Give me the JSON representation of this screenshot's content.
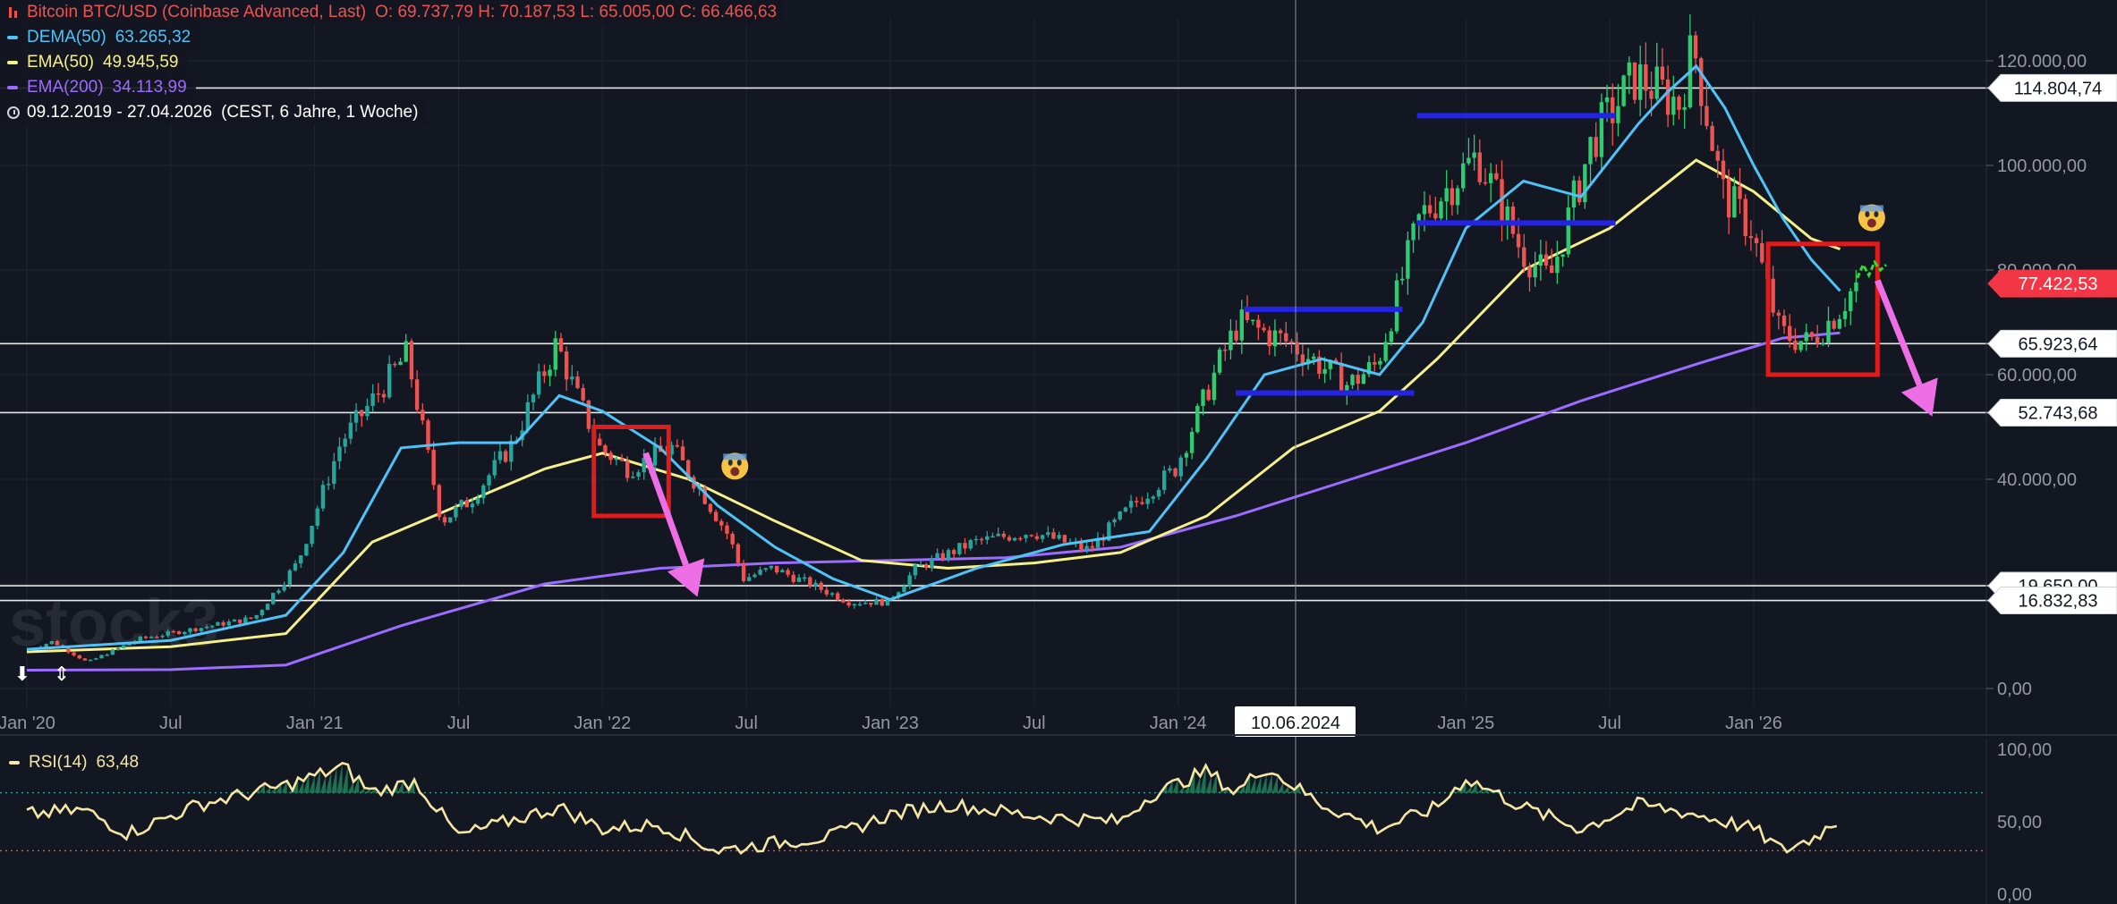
{
  "legend": {
    "title": "Bitcoin BTC/USD (Coinbase Advanced, Last)",
    "ohlc": "O: 69.737,79  H: 70.187,53  L: 65.005,00  C: 66.466,63",
    "indicators": [
      {
        "label": "DEMA(50)",
        "value": "63.265,32",
        "color": "#4fc3f7"
      },
      {
        "label": "EMA(50)",
        "value": "49.945,59",
        "color": "#f5f08a"
      },
      {
        "label": "EMA(200)",
        "value": "34.113,99",
        "color": "#9c6bff"
      }
    ],
    "range": "09.12.2019 - 27.04.2026",
    "range_detail": "(CEST, 6 Jahre, 1 Woche)"
  },
  "rsi": {
    "label": "RSI(14)",
    "value": "63,48",
    "color": "#f5e6a3",
    "axis": [
      "100,00",
      "50,00",
      "0,00"
    ]
  },
  "watermark": "stock3",
  "crosshair_date": "10.06.2024",
  "colors": {
    "up": "#26a69a",
    "up_bright": "#2ecc71",
    "down": "#ef5350",
    "bg": "#131722",
    "dema": "#4fc3f7",
    "ema50": "#f5f08a",
    "ema200": "#9c6bff",
    "box": "#e01b1b",
    "level": "#2323e6",
    "arrow": "#ee6ee6",
    "forecast": "#33dd33"
  },
  "chart_data": {
    "type": "line",
    "title": "Bitcoin BTC/USD (Coinbase Advanced, Last)",
    "xlabel": "",
    "ylabel": "",
    "ylim": [
      -5000,
      132000
    ],
    "y_ticks": [
      0,
      20000,
      40000,
      60000,
      80000,
      100000,
      120000
    ],
    "y_tick_labels": [
      "0,00",
      "",
      "40.000,00",
      "60.000,00",
      "80.000,00",
      "100.000,00",
      "120.000,00"
    ],
    "x_tick_labels": [
      "Jan '20",
      "Jul",
      "Jan '21",
      "Jul",
      "Jan '22",
      "Jul",
      "Jan '23",
      "Jul",
      "Jan '24",
      "Jan '25",
      "Jul",
      "Jan '26"
    ],
    "x_tick_times": [
      2020.0,
      2020.5,
      2021.0,
      2021.5,
      2022.0,
      2022.5,
      2023.0,
      2023.5,
      2024.0,
      2025.0,
      2025.5,
      2026.0
    ],
    "x_range": [
      2020.0,
      2026.9
    ],
    "price_path": [
      [
        2020.0,
        7200
      ],
      [
        2020.1,
        9000
      ],
      [
        2020.22,
        5000
      ],
      [
        2020.4,
        9500
      ],
      [
        2020.6,
        11500
      ],
      [
        2020.8,
        13500
      ],
      [
        2020.95,
        24000
      ],
      [
        2021.1,
        47000
      ],
      [
        2021.25,
        58000
      ],
      [
        2021.33,
        64000
      ],
      [
        2021.45,
        32000
      ],
      [
        2021.55,
        36000
      ],
      [
        2021.7,
        47000
      ],
      [
        2021.85,
        66000
      ],
      [
        2021.92,
        56000
      ],
      [
        2022.0,
        46000
      ],
      [
        2022.1,
        42000
      ],
      [
        2022.25,
        46000
      ],
      [
        2022.35,
        38000
      ],
      [
        2022.45,
        29000
      ],
      [
        2022.5,
        21000
      ],
      [
        2022.6,
        23000
      ],
      [
        2022.75,
        19500
      ],
      [
        2022.87,
        16500
      ],
      [
        2023.0,
        16600
      ],
      [
        2023.1,
        23000
      ],
      [
        2023.3,
        28000
      ],
      [
        2023.5,
        30000
      ],
      [
        2023.7,
        26500
      ],
      [
        2023.85,
        35000
      ],
      [
        2024.0,
        42000
      ],
      [
        2024.15,
        62000
      ],
      [
        2024.22,
        70000
      ],
      [
        2024.4,
        66000
      ],
      [
        2024.6,
        58000
      ],
      [
        2024.7,
        62000
      ],
      [
        2024.85,
        90000
      ],
      [
        2024.95,
        96000
      ],
      [
        2025.05,
        102000
      ],
      [
        2025.2,
        84000
      ],
      [
        2025.3,
        78000
      ],
      [
        2025.45,
        105000
      ],
      [
        2025.6,
        117000
      ],
      [
        2025.75,
        112000
      ],
      [
        2025.8,
        123000
      ],
      [
        2025.9,
        95000
      ],
      [
        2026.0,
        88000
      ],
      [
        2026.1,
        68000
      ],
      [
        2026.2,
        66000
      ],
      [
        2026.3,
        72000
      ],
      [
        2026.36,
        77000
      ]
    ],
    "series": [
      {
        "name": "DEMA(50)",
        "last": 63265.32,
        "x": [
          2020.0,
          2020.5,
          2020.9,
          2021.1,
          2021.3,
          2021.5,
          2021.7,
          2021.85,
          2022.0,
          2022.2,
          2022.4,
          2022.6,
          2022.8,
          2023.0,
          2023.3,
          2023.6,
          2023.9,
          2024.1,
          2024.3,
          2024.5,
          2024.7,
          2024.85,
          2025.0,
          2025.2,
          2025.4,
          2025.6,
          2025.7,
          2025.8,
          2025.9,
          2026.0,
          2026.1,
          2026.2,
          2026.3
        ],
        "y": [
          7500,
          9200,
          14000,
          26000,
          46000,
          47000,
          47000,
          56000,
          53000,
          46000,
          35000,
          27000,
          21000,
          17000,
          23000,
          27500,
          30000,
          44000,
          60000,
          63000,
          60000,
          70000,
          88000,
          97000,
          94000,
          108000,
          114000,
          119000,
          111000,
          100000,
          90000,
          82000,
          76000
        ]
      },
      {
        "name": "EMA(50)",
        "last": 49945.59,
        "x": [
          2020.0,
          2020.5,
          2020.9,
          2021.2,
          2021.5,
          2021.8,
          2022.0,
          2022.3,
          2022.6,
          2022.9,
          2023.2,
          2023.5,
          2023.8,
          2024.1,
          2024.4,
          2024.7,
          2024.9,
          2025.2,
          2025.5,
          2025.8,
          2026.0,
          2026.2,
          2026.3
        ],
        "y": [
          7000,
          8000,
          10500,
          28000,
          35000,
          42000,
          45000,
          40000,
          32000,
          24500,
          23000,
          24000,
          26000,
          33000,
          46000,
          53000,
          63000,
          80000,
          88000,
          101000,
          95000,
          86000,
          84000
        ]
      },
      {
        "name": "EMA(200)",
        "last": 34113.99,
        "x": [
          2020.0,
          2020.5,
          2020.9,
          2021.3,
          2021.8,
          2022.2,
          2022.6,
          2023.0,
          2023.4,
          2023.8,
          2024.2,
          2024.6,
          2025.0,
          2025.4,
          2025.8,
          2026.1,
          2026.3
        ],
        "y": [
          3500,
          3600,
          4500,
          12000,
          20000,
          23000,
          24000,
          24500,
          25000,
          27000,
          33000,
          40000,
          47000,
          55000,
          62000,
          67000,
          68000
        ]
      },
      {
        "name": "RSI(14)",
        "last": 63.48,
        "x": [
          2020.0,
          2020.2,
          2020.35,
          2020.6,
          2020.9,
          2021.1,
          2021.2,
          2021.35,
          2021.5,
          2021.7,
          2021.85,
          2022.0,
          2022.2,
          2022.4,
          2022.55,
          2022.8,
          2023.0,
          2023.2,
          2023.5,
          2023.8,
          2023.9,
          2024.1,
          2024.2,
          2024.3,
          2024.5,
          2024.7,
          2024.9,
          2025.0,
          2025.2,
          2025.4,
          2025.6,
          2025.8,
          2026.0,
          2026.1,
          2026.2,
          2026.3
        ],
        "y": [
          55,
          58,
          42,
          62,
          75,
          88,
          70,
          78,
          40,
          52,
          60,
          45,
          48,
          30,
          34,
          40,
          55,
          62,
          54,
          50,
          68,
          85,
          70,
          88,
          62,
          45,
          60,
          80,
          60,
          45,
          62,
          55,
          45,
          30,
          38,
          52
        ]
      }
    ],
    "horizontal_levels": [
      114804.74,
      65923.64,
      52743.68,
      19650.0,
      16832.83
    ],
    "price_labels": [
      {
        "value": 114804.74,
        "text": "114.804,74"
      },
      {
        "value": 77422.53,
        "text": "77.422,53",
        "highlight": true
      },
      {
        "value": 65923.64,
        "text": "65.923,64"
      },
      {
        "value": 52743.68,
        "text": "52.743,68"
      },
      {
        "value": 19650.0,
        "text": "19.650,00"
      },
      {
        "value": 16832.83,
        "text": "16.832,83"
      }
    ],
    "support_resistance_segments": [
      {
        "x": [
          2024.23,
          2024.78
        ],
        "y": 72500
      },
      {
        "x": [
          2024.2,
          2024.82
        ],
        "y": 56500
      },
      {
        "x": [
          2024.83,
          2025.52
        ],
        "y": 109500
      },
      {
        "x": [
          2024.83,
          2025.52
        ],
        "y": 89000
      }
    ],
    "rectangles": [
      {
        "x": [
          2021.97,
          2022.23
        ],
        "y": [
          33000,
          50000
        ]
      },
      {
        "x": [
          2026.05,
          2026.43
        ],
        "y": [
          60000,
          85000
        ]
      }
    ],
    "arrows": [
      {
        "from": [
          2022.15,
          45000
        ],
        "to": [
          2022.33,
          17500
        ]
      },
      {
        "from": [
          2026.43,
          78000
        ],
        "to": [
          2026.62,
          52000
        ]
      }
    ],
    "forecast": {
      "x": [
        2026.36,
        2026.38,
        2026.4,
        2026.42,
        2026.44,
        2026.46
      ],
      "y": [
        78500,
        81000,
        79000,
        81500,
        80000,
        81000
      ]
    },
    "emojis": [
      [
        2022.46,
        42500
      ],
      [
        2026.41,
        90000
      ]
    ],
    "rsi_ylim": [
      0,
      100
    ],
    "rsi_levels": [
      70,
      30
    ]
  }
}
